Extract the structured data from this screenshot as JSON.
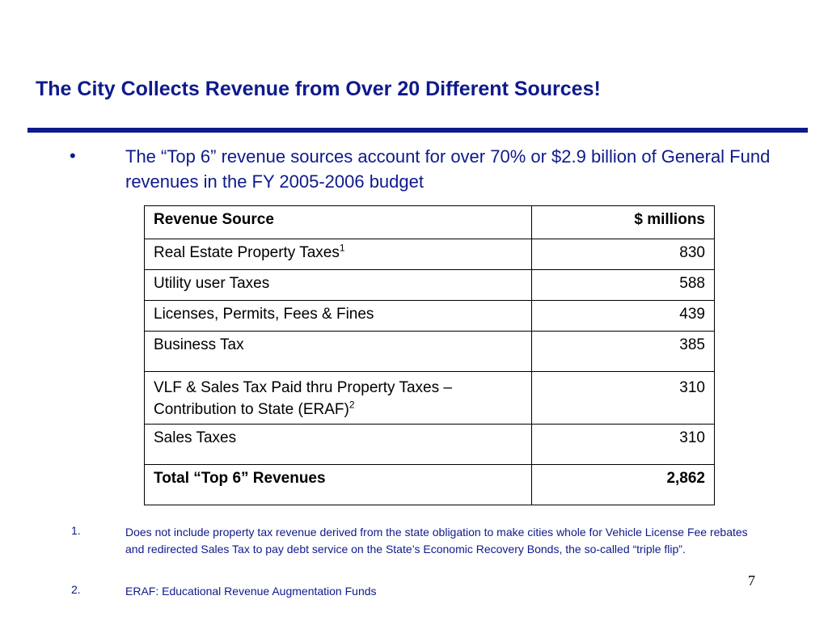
{
  "slide": {
    "title": "The City Collects Revenue from Over 20 Different Sources!",
    "bullet_symbol": "•",
    "bullet_text": "The “Top 6” revenue sources account for over 70% or $2.9 billion of General Fund revenues in the FY 2005-2006 budget",
    "page_number": "7"
  },
  "table": {
    "header": {
      "source": "Revenue Source",
      "amount": "$ millions"
    },
    "rows": [
      {
        "source": "Real Estate Property Taxes",
        "sup": "1",
        "amount": "830"
      },
      {
        "source": "Utility user Taxes",
        "sup": "",
        "amount": "588"
      },
      {
        "source": "Licenses, Permits, Fees & Fines",
        "sup": "",
        "amount": "439"
      },
      {
        "source": "Business Tax",
        "sup": "",
        "amount": "385"
      },
      {
        "source": "VLF & Sales Tax Paid thru Property Taxes – Contribution to State (ERAF)",
        "sup": "2",
        "amount": "310"
      },
      {
        "source": "Sales Taxes",
        "sup": "",
        "amount": "310"
      }
    ],
    "total": {
      "source": "Total “Top 6” Revenues",
      "amount": "2,862"
    }
  },
  "footnotes": [
    {
      "number": "1.",
      "text": "Does not include property tax revenue derived from the state obligation to make cities whole for Vehicle License Fee rebates and redirected Sales Tax to pay debt service on the State’s Economic Recovery Bonds, the so-called “triple flip”."
    },
    {
      "number": "2.",
      "text": "ERAF: Educational Revenue Augmentation Funds"
    }
  ],
  "colors": {
    "accent": "#0e1a8c",
    "text": "#000000",
    "background": "#ffffff"
  }
}
